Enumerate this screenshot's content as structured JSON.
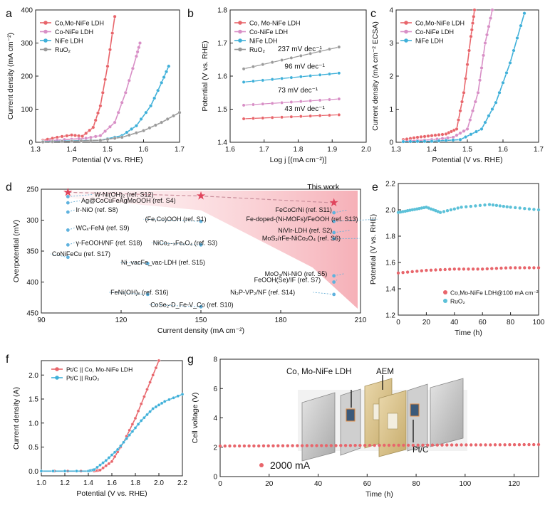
{
  "chart_data": [
    {
      "id": "a",
      "panel_label": "a",
      "type": "line",
      "xlabel": "Potential (V vs. RHE)",
      "ylabel": "Current density (mA cm⁻²)",
      "xlim": [
        1.3,
        1.7
      ],
      "ylim": [
        0,
        400
      ],
      "xticks": [
        1.3,
        1.4,
        1.5,
        1.6,
        1.7
      ],
      "yticks": [
        0,
        100,
        200,
        300,
        400
      ],
      "legend": "top-left",
      "series": [
        {
          "name": "Co,Mo-NiFe LDH",
          "color": "#e8656b",
          "points": [
            [
              1.32,
              6
            ],
            [
              1.36,
              15
            ],
            [
              1.4,
              22
            ],
            [
              1.43,
              18
            ],
            [
              1.46,
              45
            ],
            [
              1.48,
              110
            ],
            [
              1.5,
              230
            ],
            [
              1.52,
              380
            ]
          ]
        },
        {
          "name": "Co-NiFe LDH",
          "color": "#d88fc6",
          "points": [
            [
              1.32,
              3
            ],
            [
              1.38,
              8
            ],
            [
              1.44,
              12
            ],
            [
              1.48,
              20
            ],
            [
              1.52,
              60
            ],
            [
              1.55,
              150
            ],
            [
              1.58,
              260
            ],
            [
              1.59,
              300
            ]
          ]
        },
        {
          "name": "NiFe LDH",
          "color": "#3fb0d9",
          "points": [
            [
              1.32,
              2
            ],
            [
              1.4,
              4
            ],
            [
              1.48,
              6
            ],
            [
              1.54,
              20
            ],
            [
              1.58,
              50
            ],
            [
              1.62,
              110
            ],
            [
              1.65,
              180
            ],
            [
              1.67,
              230
            ]
          ]
        },
        {
          "name": "RuO₂",
          "color": "#9a9a9a",
          "points": [
            [
              1.32,
              1
            ],
            [
              1.4,
              3
            ],
            [
              1.48,
              6
            ],
            [
              1.54,
              15
            ],
            [
              1.6,
              35
            ],
            [
              1.65,
              60
            ],
            [
              1.7,
              90
            ]
          ]
        }
      ]
    },
    {
      "id": "b",
      "panel_label": "b",
      "type": "line",
      "xlabel": "Log j [(mA cm⁻²)]",
      "ylabel": "Potential (V vs. RHE)",
      "xlim": [
        1.6,
        2.0
      ],
      "ylim": [
        1.4,
        1.8
      ],
      "xticks": [
        1.6,
        1.7,
        1.8,
        1.9,
        2.0
      ],
      "yticks": [
        1.4,
        1.5,
        1.6,
        1.7,
        1.8
      ],
      "legend": "top-left",
      "series": [
        {
          "name": "Co, Mo-NiFe LDH",
          "color": "#e8656b",
          "points": [
            [
              1.64,
              1.471
            ],
            [
              1.92,
              1.483
            ]
          ]
        },
        {
          "name": "Co-NiFe LDH",
          "color": "#d88fc6",
          "points": [
            [
              1.64,
              1.512
            ],
            [
              1.92,
              1.531
            ]
          ]
        },
        {
          "name": "NiFe LDH",
          "color": "#3fb0d9",
          "points": [
            [
              1.64,
              1.582
            ],
            [
              1.92,
              1.609
            ]
          ]
        },
        {
          "name": "RuO₂",
          "color": "#9a9a9a",
          "points": [
            [
              1.64,
              1.622
            ],
            [
              1.92,
              1.688
            ]
          ]
        }
      ],
      "annotations": [
        "237 mV dec⁻¹",
        "96 mV dec⁻¹",
        "73 mV dec⁻¹",
        "43 mV dec⁻¹"
      ]
    },
    {
      "id": "c",
      "panel_label": "c",
      "type": "line",
      "xlabel": "Potential (V vs. RHE)",
      "ylabel": "Current density (mA cm⁻² ECSA)",
      "xlim": [
        1.3,
        1.7
      ],
      "ylim": [
        0,
        4
      ],
      "xticks": [
        1.3,
        1.4,
        1.5,
        1.6,
        1.7
      ],
      "yticks": [
        0,
        1,
        2,
        3,
        4
      ],
      "legend": "top-left",
      "series": [
        {
          "name": "Co,Mo-NiFe LDH",
          "color": "#e8656b",
          "points": [
            [
              1.32,
              0.08
            ],
            [
              1.36,
              0.15
            ],
            [
              1.4,
              0.2
            ],
            [
              1.44,
              0.25
            ],
            [
              1.47,
              0.4
            ],
            [
              1.49,
              1.5
            ],
            [
              1.51,
              3.2
            ],
            [
              1.52,
              4.0
            ]
          ]
        },
        {
          "name": "Co-NiFe LDH",
          "color": "#d88fc6",
          "points": [
            [
              1.32,
              0.03
            ],
            [
              1.4,
              0.08
            ],
            [
              1.46,
              0.15
            ],
            [
              1.5,
              0.4
            ],
            [
              1.53,
              1.5
            ],
            [
              1.55,
              3.0
            ],
            [
              1.57,
              4.0
            ]
          ]
        },
        {
          "name": "NiFe LDH",
          "color": "#3fb0d9",
          "points": [
            [
              1.32,
              0.02
            ],
            [
              1.4,
              0.03
            ],
            [
              1.48,
              0.08
            ],
            [
              1.54,
              0.4
            ],
            [
              1.58,
              1.2
            ],
            [
              1.62,
              2.4
            ],
            [
              1.66,
              3.9
            ]
          ]
        }
      ]
    },
    {
      "id": "d",
      "panel_label": "d",
      "type": "scatter",
      "xlabel": "Current density (mA cm⁻²)",
      "ylabel": "Overpotential (mV)",
      "xlim": [
        90,
        210
      ],
      "ylim": [
        250,
        450
      ],
      "y_inverted": true,
      "xticks": [
        90,
        120,
        150,
        180,
        210
      ],
      "yticks": [
        250,
        300,
        350,
        400,
        450
      ],
      "annotation": "This work",
      "this_work": [
        [
          100,
          255
        ],
        [
          150,
          261
        ],
        [
          200,
          272
        ]
      ],
      "references": [
        {
          "label": "W-Ni(OH)₂ (ref. S12)",
          "x": 100,
          "y": 262
        },
        {
          "label": "Ag@CoCuFeAgMoOOH (ref. S4)",
          "x": 100,
          "y": 272
        },
        {
          "label": "Ir-NiO (ref. S8)",
          "x": 100,
          "y": 287
        },
        {
          "label": "WCₓ-FeNi (ref. S9)",
          "x": 100,
          "y": 316
        },
        {
          "label": "γ-FeOOH/NF (ref. S18)",
          "x": 100,
          "y": 340
        },
        {
          "label": "CoNiFeCu (ref. S17)",
          "x": 100,
          "y": 360
        },
        {
          "label": "(Fe,Co)OOH (ref. S1)",
          "x": 150,
          "y": 302
        },
        {
          "label": "NiCo₂₋ₓFeₓO₄ (ref. S3)",
          "x": 150,
          "y": 340
        },
        {
          "label": "Ni_vacFe_vac-LDH (ref. S15)",
          "x": 130,
          "y": 370
        },
        {
          "label": "FeNi(OH)ₓ (ref. S16)",
          "x": 130,
          "y": 420
        },
        {
          "label": "CoSe₂-D_Fe-V_Co (ref. S10)",
          "x": 150,
          "y": 440
        },
        {
          "label": "FeCoCrNi (ref. S11)",
          "x": 200,
          "y": 288
        },
        {
          "label": "Fe-doped-(Ni-MOFs)/FeOOH (ref. S13)",
          "x": 200,
          "y": 302
        },
        {
          "label": "NiVIr-LDH (ref. S2)",
          "x": 200,
          "y": 320
        },
        {
          "label": "MoS₂/rFe-NiCo₂O₄ (ref. S6)",
          "x": 200,
          "y": 330
        },
        {
          "label": "MoO₃/Ni-NiO (ref. S5)",
          "x": 200,
          "y": 390
        },
        {
          "label": "FeOOH(Se)/IF (ref. S7)",
          "x": 200,
          "y": 400
        },
        {
          "label": "Ni₂P-VP₂/NF (ref. S14)",
          "x": 200,
          "y": 420
        }
      ]
    },
    {
      "id": "e",
      "panel_label": "e",
      "type": "line",
      "xlabel": "Time (h)",
      "ylabel": "Potential (V vs. RHE)",
      "xlim": [
        0,
        100
      ],
      "ylim": [
        1.2,
        2.2
      ],
      "xticks": [
        0,
        20,
        40,
        60,
        80,
        100
      ],
      "yticks": [
        1.2,
        1.4,
        1.6,
        1.8,
        2.0,
        2.2
      ],
      "legend": "bottom-right",
      "series": [
        {
          "name": "Co,Mo-NiFe LDH@100 mA cm⁻²",
          "color": "#e8656b",
          "points": [
            [
              0,
              1.52
            ],
            [
              20,
              1.54
            ],
            [
              40,
              1.55
            ],
            [
              60,
              1.55
            ],
            [
              80,
              1.56
            ],
            [
              100,
              1.56
            ]
          ]
        },
        {
          "name": "RuO₂",
          "color": "#5cc1d8",
          "points": [
            [
              0,
              1.98
            ],
            [
              10,
              2.0
            ],
            [
              20,
              2.02
            ],
            [
              30,
              1.98
            ],
            [
              45,
              2.02
            ],
            [
              65,
              2.04
            ],
            [
              80,
              2.02
            ],
            [
              100,
              2.0
            ]
          ]
        }
      ]
    },
    {
      "id": "f",
      "panel_label": "f",
      "type": "line",
      "xlabel": "Potential (V vs. RHE)",
      "ylabel": "Current density (A)",
      "xlim": [
        1.0,
        2.2
      ],
      "ylim": [
        -0.1,
        2.3
      ],
      "xticks": [
        1.0,
        1.2,
        1.4,
        1.6,
        1.8,
        2.0,
        2.2
      ],
      "yticks": [
        0.0,
        0.5,
        1.0,
        1.5,
        2.0
      ],
      "legend": "top-left",
      "series": [
        {
          "name": "Pt/C || Co, Mo-NiFe LDH",
          "color": "#e8656b",
          "points": [
            [
              1.0,
              0
            ],
            [
              1.45,
              0
            ],
            [
              1.5,
              0.02
            ],
            [
              1.6,
              0.2
            ],
            [
              1.7,
              0.6
            ],
            [
              1.8,
              1.1
            ],
            [
              1.9,
              1.7
            ],
            [
              2.0,
              2.3
            ]
          ]
        },
        {
          "name": "Pt/C || RuO₂",
          "color": "#3fb0d9",
          "points": [
            [
              1.0,
              0
            ],
            [
              1.4,
              0
            ],
            [
              1.45,
              0.03
            ],
            [
              1.55,
              0.22
            ],
            [
              1.65,
              0.45
            ],
            [
              1.75,
              0.75
            ],
            [
              1.85,
              1.05
            ],
            [
              1.95,
              1.3
            ],
            [
              2.05,
              1.45
            ],
            [
              2.2,
              1.6
            ]
          ]
        }
      ]
    },
    {
      "id": "g",
      "panel_label": "g",
      "type": "line",
      "xlabel": "Time (h)",
      "ylabel": "Cell voltage (V)",
      "xlim": [
        0,
        130
      ],
      "ylim": [
        0,
        8
      ],
      "xticks": [
        0,
        20,
        40,
        60,
        80,
        100,
        120
      ],
      "yticks": [
        0,
        2,
        4,
        6,
        8
      ],
      "legend": "bottom-left",
      "series": [
        {
          "name": "2000 mA",
          "color": "#e8656b",
          "points": [
            [
              0,
              2.08
            ],
            [
              130,
              2.18
            ]
          ]
        }
      ],
      "inset_labels": [
        "Co, Mo-NiFe LDH",
        "AEM",
        "Pt/C"
      ]
    }
  ]
}
